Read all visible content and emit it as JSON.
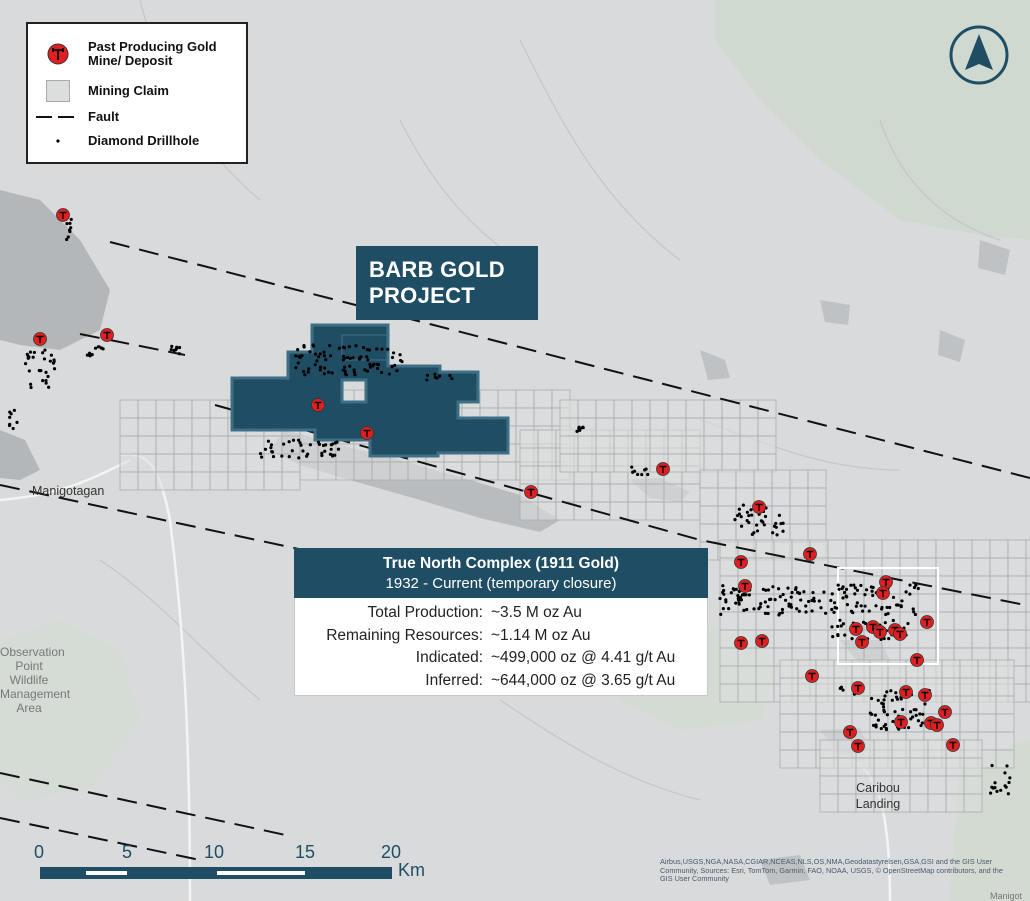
{
  "legend": {
    "mine_label_line1": "Past Producing Gold",
    "mine_label_line2": "Mine/ Deposit",
    "claim_label": "Mining Claim",
    "fault_label": "Fault",
    "drillhole_label": "Diamond Drillhole"
  },
  "project": {
    "line1": "BARB GOLD",
    "line2": "PROJECT"
  },
  "info_box": {
    "title": "True North Complex (1911 Gold)",
    "subtitle": "1932 - Current (temporary closure)",
    "rows": [
      {
        "key": "Total Production:",
        "value": "~3.5 M oz Au"
      },
      {
        "key": "Remaining Resources:",
        "value": "~1.14 M oz Au"
      },
      {
        "key": "Indicated:",
        "value": "~499,000 oz @ 4.41 g/t Au"
      },
      {
        "key": "Inferred:",
        "value": "~644,000 oz @ 3.65 g/t Au"
      }
    ]
  },
  "places": {
    "manigotagan": "Manigotagan",
    "obs_line1": "Observation",
    "obs_line2": "Point",
    "obs_line3": "Wildlife",
    "obs_line4": "Management",
    "obs_line5": "Area",
    "caribou_line1": "Caribou",
    "caribou_line2": "Landing",
    "corner": "Manigot"
  },
  "scale_bar": {
    "ticks": [
      "0",
      "5",
      "10",
      "15",
      "20"
    ],
    "unit": "Km"
  },
  "attribution": "Airbus,USGS,NGA,NASA,CGIAR,NCEAS,NLS,OS,NMA,Geodatastyrelsen,GSA,GSI and the GIS User Community, Sources: Esri, TomTom, Garmin, FAO, NOAA, USGS, © OpenStreetMap contributors, and the GIS User Community",
  "colors": {
    "brand": "#1f4e64",
    "mine_red": "#e02020",
    "background": "#d9dadb",
    "water": "#b3b6b8",
    "vegetation": "#cfd9cf"
  },
  "icons": {
    "mine": "crossed-hammers-icon",
    "north": "north-arrow-icon"
  }
}
